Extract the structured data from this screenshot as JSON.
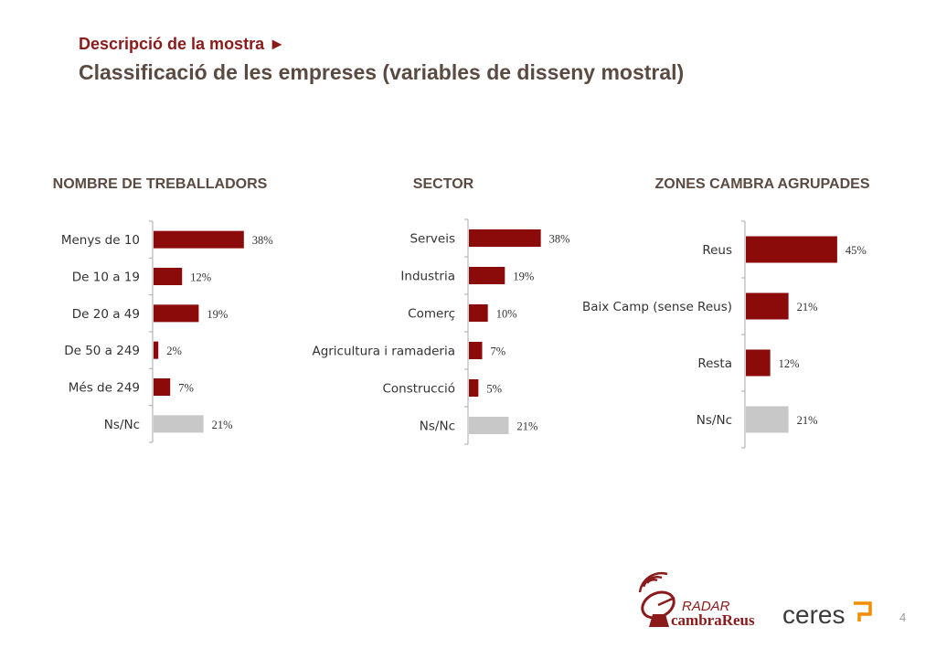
{
  "header": {
    "kicker": "Descripció de la mostra ►",
    "title": "Classificació de les empreses (variables de disseny mostral)"
  },
  "colors": {
    "primary": "#8b0a0a",
    "missing": "#c8c8c8",
    "axis": "#aaaaaa",
    "text": "#333333"
  },
  "chart_data": [
    {
      "type": "bar",
      "orientation": "horizontal",
      "title": "NOMBRE DE TREBALLADORS",
      "categories": [
        "Menys de 10",
        "De 10 a 19",
        "De 20 a 49",
        "De 50 a 249",
        "Més de 249",
        "Ns/Nc"
      ],
      "values": [
        38,
        12,
        19,
        2,
        7,
        21
      ],
      "value_labels": [
        "38%",
        "12%",
        "19%",
        "2%",
        "7%",
        "21%"
      ],
      "bar_colors": [
        "#8b0a0a",
        "#8b0a0a",
        "#8b0a0a",
        "#8b0a0a",
        "#8b0a0a",
        "#c8c8c8"
      ],
      "unit": "%",
      "grid": false
    },
    {
      "type": "bar",
      "orientation": "horizontal",
      "title": "SECTOR",
      "categories": [
        "Serveis",
        "Industria",
        "Comerç",
        "Agricultura i ramaderia",
        "Construcció",
        "Ns/Nc"
      ],
      "values": [
        38,
        19,
        10,
        7,
        5,
        21
      ],
      "value_labels": [
        "38%",
        "19%",
        "10%",
        "7%",
        "5%",
        "21%"
      ],
      "bar_colors": [
        "#8b0a0a",
        "#8b0a0a",
        "#8b0a0a",
        "#8b0a0a",
        "#8b0a0a",
        "#c8c8c8"
      ],
      "unit": "%",
      "grid": false
    },
    {
      "type": "bar",
      "orientation": "horizontal",
      "title": "ZONES CAMBRA AGRUPADES",
      "categories": [
        "Reus",
        "Baix Camp (sense Reus)",
        "Resta",
        "Ns/Nc"
      ],
      "values": [
        45,
        21,
        12,
        21
      ],
      "value_labels": [
        "45%",
        "21%",
        "12%",
        "21%"
      ],
      "bar_colors": [
        "#8b0a0a",
        "#8b0a0a",
        "#8b0a0a",
        "#c8c8c8"
      ],
      "unit": "%",
      "grid": false
    }
  ],
  "footer": {
    "logo_radar": "RADAR",
    "logo_cambra": "cambraReus",
    "logo_ceres": "ceres",
    "page_number": "4"
  }
}
